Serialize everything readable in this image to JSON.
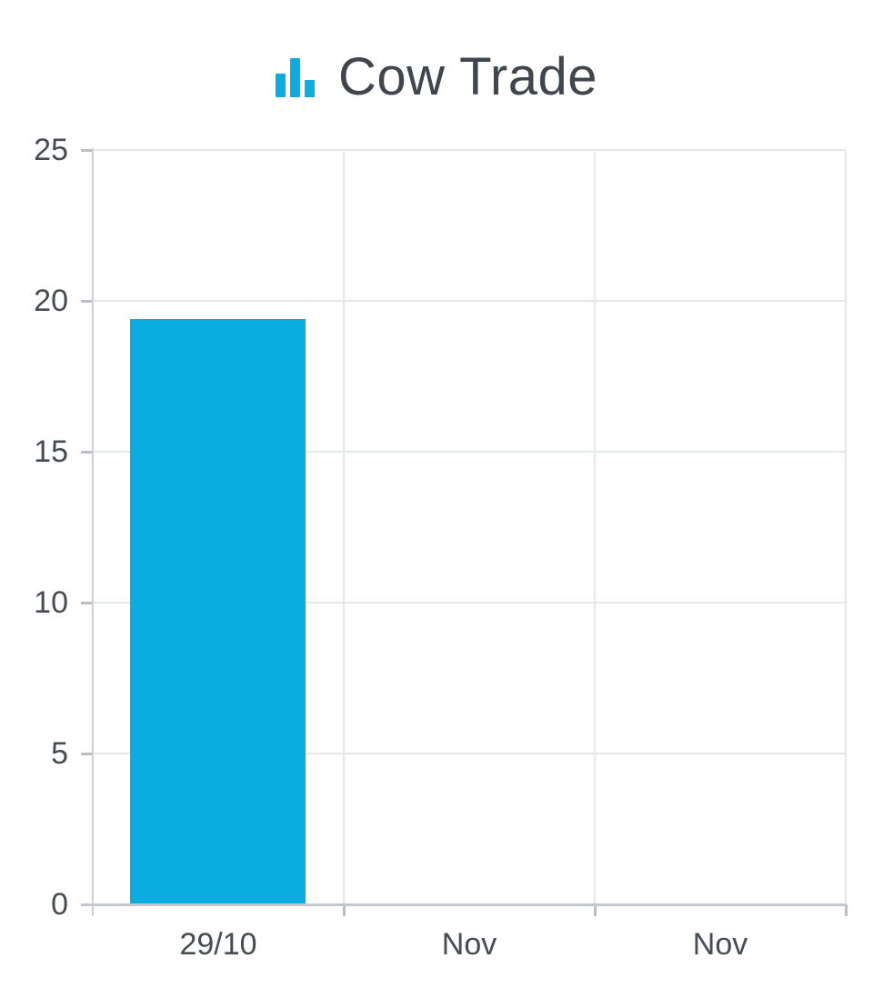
{
  "header": {
    "title": "Cow Trade",
    "icon": "bar-chart-icon"
  },
  "colors": {
    "accent": "#0aade0",
    "title_text": "#3f464d",
    "axis_text": "#464c52",
    "gridline": "#e5e8eb",
    "axis_line": "#c2c8ce",
    "background": "#ffffff"
  },
  "chart_data": {
    "type": "bar",
    "title": "Cow Trade",
    "categories": [
      "29/10",
      "Nov",
      "Nov"
    ],
    "values": [
      19.4,
      0,
      0
    ],
    "series": [
      {
        "name": "Cow Trade",
        "values": [
          19.4,
          0,
          0
        ]
      }
    ],
    "xlabel": "",
    "ylabel": "",
    "ylim": [
      0,
      25
    ],
    "yticks": [
      0,
      5,
      10,
      15,
      20,
      25
    ],
    "ytick_labels": [
      "0",
      "5",
      "10",
      "15",
      "20",
      "25"
    ],
    "grid": true,
    "legend": "none",
    "bar_color": "#0aade0"
  }
}
